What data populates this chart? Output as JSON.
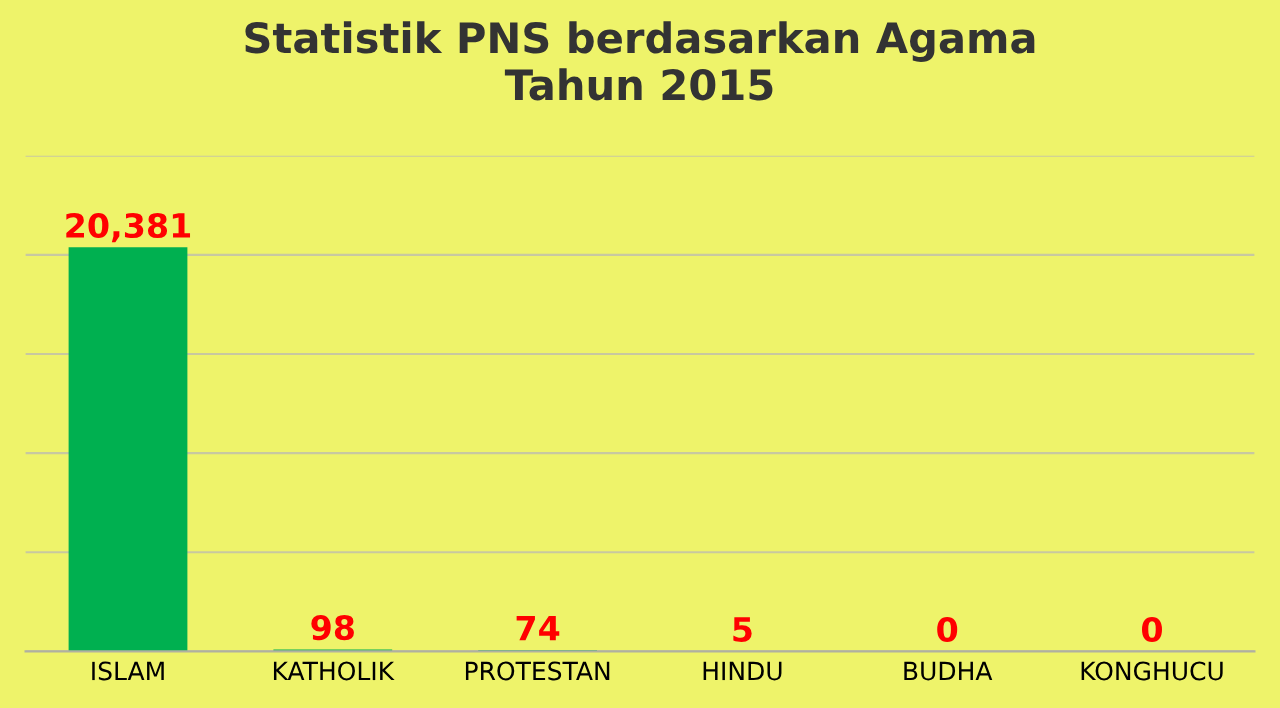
{
  "chart_data": {
    "type": "bar",
    "title": "Statistik PNS berdasarkan Agama\nTahun 2015",
    "categories": [
      "ISLAM",
      "KATHOLIK",
      "PROTESTAN",
      "HINDU",
      "BUDHA",
      "KONGHUCU"
    ],
    "values": [
      20381,
      98,
      74,
      5,
      0,
      0
    ],
    "color": "#00b050",
    "value_labels": [
      "20,381",
      "98",
      "74",
      "5",
      "0",
      "0"
    ],
    "ylim": [
      0,
      25000
    ],
    "yticks": [
      {
        "value": 0,
        "label": null
      },
      {
        "value": 5000,
        "label": null
      },
      {
        "value": 10000,
        "label": null
      },
      {
        "value": 15000,
        "label": null
      },
      {
        "value": 20000,
        "label": null
      },
      {
        "value": 25000,
        "label": null
      }
    ],
    "grid": "y",
    "tick_labels": "x"
  }
}
